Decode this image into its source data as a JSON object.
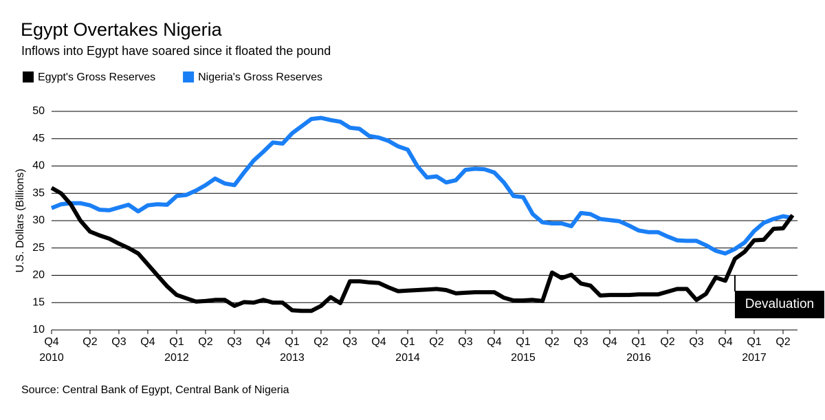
{
  "chart_data": {
    "type": "line",
    "title": "Egypt Overtakes Nigeria",
    "subtitle": "Inflows into Egypt have soared since it floated the pound",
    "y_label": "U.S. Dollars (Billions)",
    "source": "Source: Central Bank of Egypt, Central Bank of Nigeria",
    "annotation": {
      "text": "Devaluation",
      "x": 2016.833
    },
    "x": [
      2010.917,
      2011,
      2011.083,
      2011.167,
      2011.25,
      2011.333,
      2011.417,
      2011.5,
      2011.583,
      2011.667,
      2011.75,
      2011.833,
      2011.917,
      2012,
      2012.083,
      2012.167,
      2012.25,
      2012.333,
      2012.417,
      2012.5,
      2012.583,
      2012.667,
      2012.75,
      2012.833,
      2012.917,
      2013,
      2013.083,
      2013.167,
      2013.25,
      2013.333,
      2013.417,
      2013.5,
      2013.583,
      2013.667,
      2013.75,
      2013.833,
      2013.917,
      2014,
      2014.083,
      2014.167,
      2014.25,
      2014.333,
      2014.417,
      2014.5,
      2014.583,
      2014.667,
      2014.75,
      2014.833,
      2014.917,
      2015,
      2015.083,
      2015.167,
      2015.25,
      2015.333,
      2015.417,
      2015.5,
      2015.583,
      2015.667,
      2015.75,
      2015.833,
      2015.917,
      2016,
      2016.083,
      2016.167,
      2016.25,
      2016.333,
      2016.417,
      2016.5,
      2016.583,
      2016.667,
      2016.75,
      2016.833,
      2016.917,
      2017,
      2017.083,
      2017.167,
      2017.25,
      2017.333
    ],
    "series": [
      {
        "name": "Egypt's Gross Reserves",
        "color": "#000000",
        "values": [
          36,
          35,
          33,
          30,
          28,
          27.3,
          26.7,
          25.8,
          25,
          24,
          22,
          20,
          18,
          16.4,
          15.8,
          15.2,
          15.3,
          15.5,
          15.5,
          14.4,
          15.1,
          15,
          15.5,
          15,
          15,
          13.6,
          13.5,
          13.5,
          14.4,
          16,
          14.9,
          18.9,
          18.9,
          18.7,
          18.6,
          17.8,
          17.1,
          17.2,
          17.3,
          17.4,
          17.5,
          17.3,
          16.7,
          16.8,
          16.9,
          16.9,
          16.9,
          15.9,
          15.4,
          15.4,
          15.5,
          15.3,
          20.5,
          19.5,
          20.1,
          18.5,
          18.1,
          16.3,
          16.4,
          16.4,
          16.4,
          16.5,
          16.5,
          16.5,
          17,
          17.5,
          17.5,
          15.5,
          16.6,
          19.6,
          19,
          23,
          24.3,
          26.4,
          26.5,
          28.5,
          28.6,
          31
        ]
      },
      {
        "name": "Nigeria's Gross Reserves",
        "color": "#1a7ff5",
        "values": [
          32.3,
          33,
          33.2,
          33.2,
          32.8,
          32,
          31.9,
          32.4,
          32.9,
          31.7,
          32.8,
          33,
          32.9,
          34.5,
          34.7,
          35.5,
          36.5,
          37.7,
          36.8,
          36.5,
          38.8,
          41,
          42.6,
          44.3,
          44.1,
          46,
          47.3,
          48.6,
          48.8,
          48.4,
          48.1,
          47,
          46.8,
          45.5,
          45.2,
          44.6,
          43.6,
          43,
          40,
          37.9,
          38.1,
          37,
          37.4,
          39.3,
          39.5,
          39.4,
          38.8,
          37,
          34.5,
          34.3,
          31.2,
          29.7,
          29.5,
          29.5,
          29,
          31.4,
          31.2,
          30.3,
          30.1,
          29.9,
          29.1,
          28.2,
          27.9,
          27.9,
          27.1,
          26.4,
          26.3,
          26.3,
          25.5,
          24.5,
          24,
          24.8,
          26,
          28.1,
          29.6,
          30.3,
          30.8,
          30.5
        ]
      }
    ],
    "xlim": [
      2010.917,
      2017.375
    ],
    "xticks": [
      {
        "value": 2010.917,
        "label": "Q4"
      },
      {
        "value": 2011.25,
        "label": "Q2"
      },
      {
        "value": 2011.5,
        "label": "Q3"
      },
      {
        "value": 2011.75,
        "label": "Q4"
      },
      {
        "value": 2012,
        "label": "Q1"
      },
      {
        "value": 2012.25,
        "label": "Q2"
      },
      {
        "value": 2012.5,
        "label": "Q3"
      },
      {
        "value": 2012.75,
        "label": "Q4"
      },
      {
        "value": 2013,
        "label": "Q1"
      },
      {
        "value": 2013.25,
        "label": "Q2"
      },
      {
        "value": 2013.5,
        "label": "Q3"
      },
      {
        "value": 2013.75,
        "label": "Q4"
      },
      {
        "value": 2014,
        "label": "Q1"
      },
      {
        "value": 2014.25,
        "label": "Q2"
      },
      {
        "value": 2014.5,
        "label": "Q3"
      },
      {
        "value": 2014.75,
        "label": "Q4"
      },
      {
        "value": 2015,
        "label": "Q1"
      },
      {
        "value": 2015.25,
        "label": "Q2"
      },
      {
        "value": 2015.5,
        "label": "Q3"
      },
      {
        "value": 2015.75,
        "label": "Q4"
      },
      {
        "value": 2016,
        "label": "Q1"
      },
      {
        "value": 2016.25,
        "label": "Q2"
      },
      {
        "value": 2016.5,
        "label": "Q3"
      },
      {
        "value": 2016.75,
        "label": "Q4"
      },
      {
        "value": 2017,
        "label": "Q1"
      },
      {
        "value": 2017.25,
        "label": "Q2"
      }
    ],
    "year_ticks": [
      {
        "value": 2010.917,
        "label": "2010"
      },
      2012,
      2013,
      2014,
      2015,
      2016,
      2017
    ],
    "ylim": [
      10,
      50
    ],
    "yticks": [
      10,
      15,
      20,
      25,
      30,
      35,
      40,
      45,
      50
    ],
    "grid": true,
    "legend": "top-left"
  }
}
